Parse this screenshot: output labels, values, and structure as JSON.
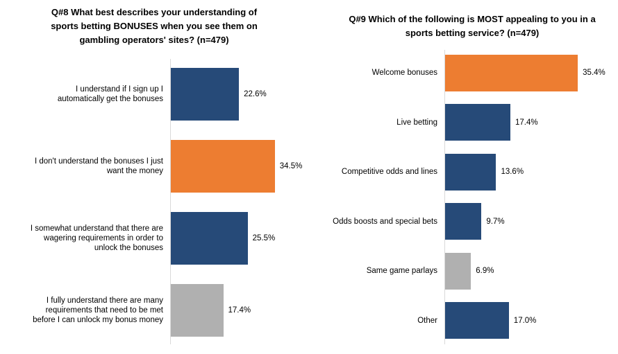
{
  "chart_data": [
    {
      "type": "bar",
      "orientation": "horizontal",
      "title": "Q#8 What best describes your understanding of sports betting BONUSES when you see them on gambling operators' sites? (n=479)",
      "categories": [
        "I understand if I sign up I automatically get the bonuses",
        "I don't understand the bonuses I just want the money",
        "I somewhat understand that there are wagering requirements in order to unlock the bonuses",
        "I fully understand there are many requirements that need to be met before I can unlock my bonus money"
      ],
      "values": [
        22.6,
        34.5,
        25.5,
        17.4
      ],
      "value_labels": [
        "22.6%",
        "34.5%",
        "25.5%",
        "17.4%"
      ],
      "colors": [
        "#264a78",
        "#ed7d31",
        "#264a78",
        "#b0b0b0"
      ]
    },
    {
      "type": "bar",
      "orientation": "horizontal",
      "title": "Q#9 Which of the following is MOST appealing to you in a sports betting service? (n=479)",
      "categories": [
        "Welcome bonuses",
        "Live betting",
        "Competitive odds and lines",
        "Odds boosts and special bets",
        "Same game parlays",
        "Other"
      ],
      "values": [
        35.4,
        17.4,
        13.6,
        9.7,
        6.9,
        17.0
      ],
      "value_labels": [
        "35.4%",
        "17.4%",
        "13.6%",
        "9.7%",
        "6.9%",
        "17.0%"
      ],
      "colors": [
        "#ed7d31",
        "#264a78",
        "#264a78",
        "#264a78",
        "#b0b0b0",
        "#264a78"
      ]
    }
  ]
}
